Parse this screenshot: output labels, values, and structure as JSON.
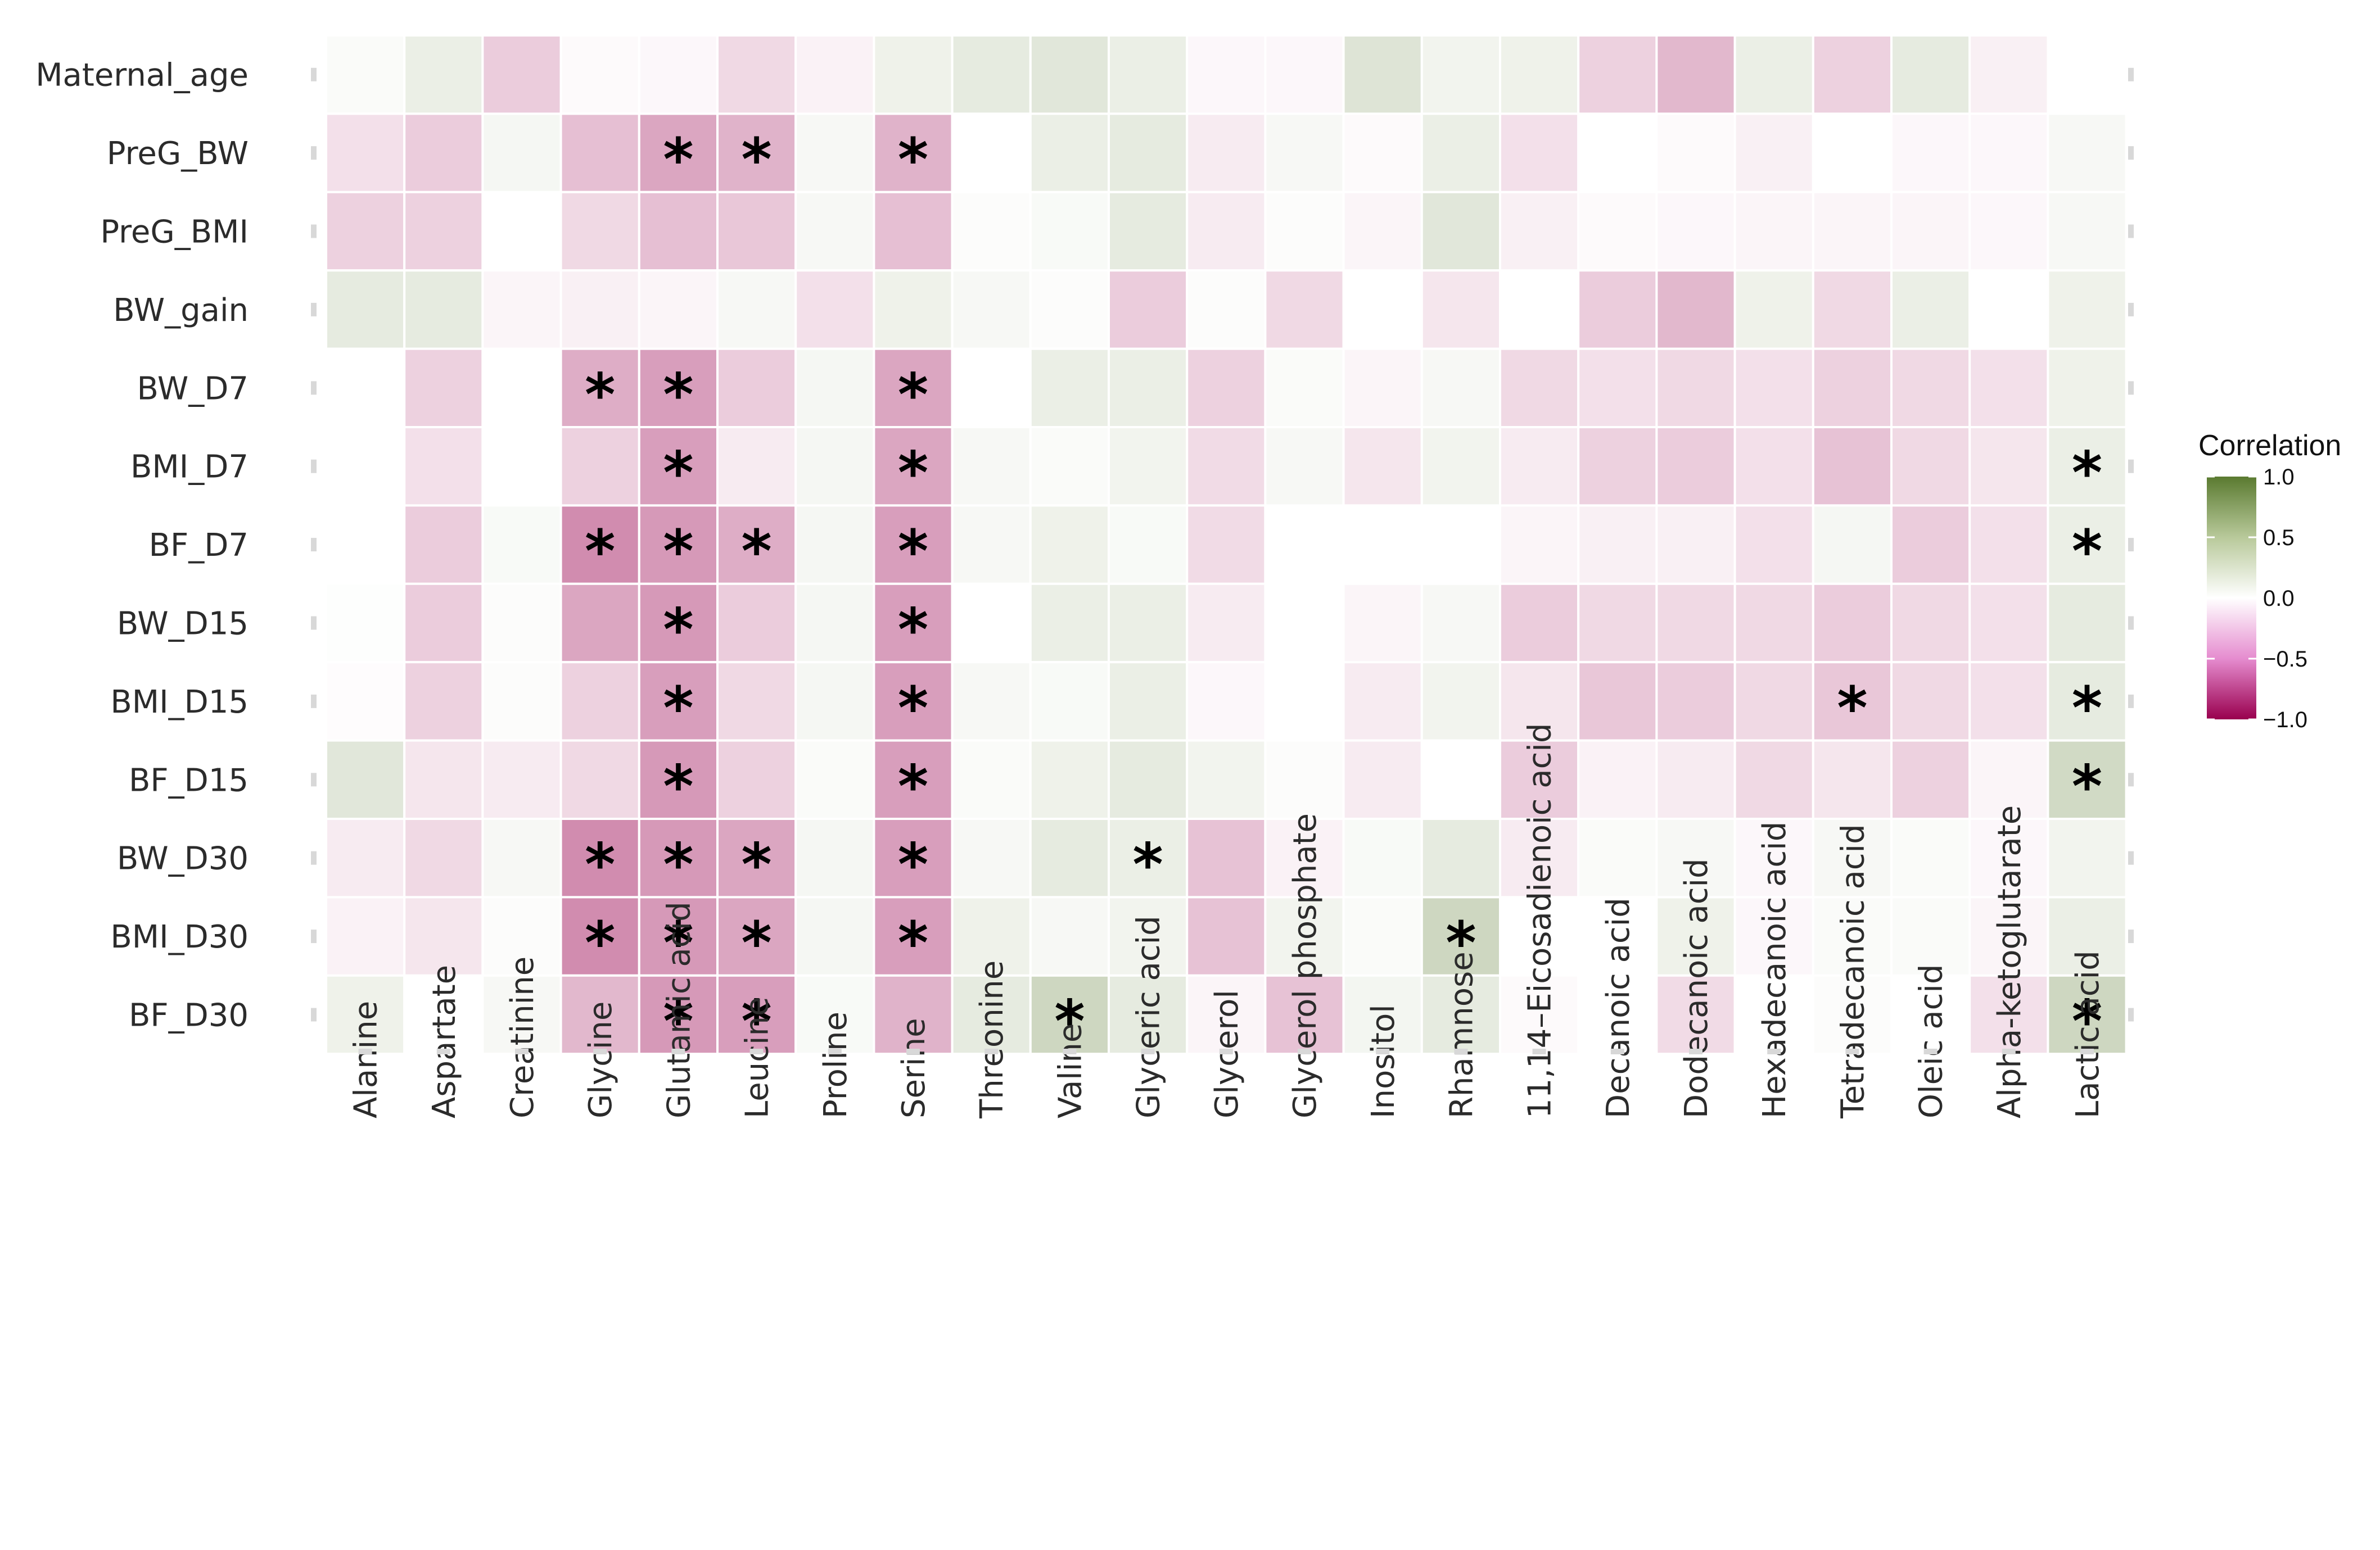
{
  "chart_data": {
    "type": "heatmap",
    "title": "",
    "xlabel": "",
    "ylabel": "",
    "rows": [
      "Maternal_age",
      "PreG_BW",
      "PreG_BMI",
      "BW_gain",
      "BW_D7",
      "BMI_D7",
      "BF_D7",
      "BW_D15",
      "BMI_D15",
      "BF_D15",
      "BW_D30",
      "BMI_D30",
      "BF_D30"
    ],
    "columns": [
      "Alanine",
      "Aspartate",
      "Creatinine",
      "Glycine",
      "Glutamic acid",
      "Leucine",
      "Proline",
      "Serine",
      "Threonine",
      "Valine",
      "Glyceric acid",
      "Glycerol",
      "Glycerol phosphate",
      "Inositol",
      "Rhamnose",
      "11,14–Eicosadienoic acid",
      "Decanoic acid",
      "Dodecanoic acid",
      "Hexadecanoic acid",
      "Tetradecanoic acid",
      "Oleic acid",
      "Alpha-ketoglutarate",
      "Lactic acid"
    ],
    "values": [
      [
        0.03,
        0.12,
        -0.2,
        -0.02,
        -0.03,
        -0.15,
        -0.05,
        0.1,
        0.15,
        0.18,
        0.12,
        -0.03,
        -0.03,
        0.2,
        0.08,
        0.1,
        -0.18,
        -0.28,
        0.12,
        -0.18,
        0.15,
        -0.06,
        null
      ],
      [
        -0.12,
        -0.2,
        0.06,
        -0.25,
        -0.35,
        -0.3,
        0.05,
        -0.3,
        0.0,
        0.12,
        0.15,
        -0.08,
        0.05,
        -0.02,
        0.12,
        -0.12,
        0.0,
        -0.02,
        -0.06,
        0.0,
        -0.03,
        -0.03,
        0.05
      ],
      [
        -0.18,
        -0.18,
        0.0,
        -0.15,
        -0.25,
        -0.22,
        0.05,
        -0.25,
        0.02,
        0.04,
        0.15,
        -0.08,
        0.02,
        -0.04,
        0.18,
        -0.06,
        -0.02,
        -0.03,
        -0.04,
        -0.04,
        -0.04,
        -0.03,
        0.05
      ],
      [
        0.15,
        0.15,
        -0.04,
        -0.06,
        -0.04,
        0.05,
        -0.12,
        0.1,
        0.05,
        0.02,
        -0.2,
        0.02,
        -0.15,
        0.0,
        -0.1,
        0.0,
        -0.2,
        -0.28,
        0.1,
        -0.15,
        0.12,
        0.0,
        0.1
      ],
      [
        0.0,
        -0.18,
        0.0,
        -0.32,
        -0.38,
        -0.2,
        0.06,
        -0.35,
        0.0,
        0.12,
        0.12,
        -0.18,
        0.03,
        -0.04,
        0.05,
        -0.15,
        -0.12,
        -0.15,
        -0.12,
        -0.18,
        -0.15,
        -0.12,
        0.1
      ],
      [
        0.0,
        -0.12,
        0.0,
        -0.18,
        -0.38,
        -0.08,
        0.06,
        -0.35,
        0.05,
        0.03,
        0.08,
        -0.14,
        0.05,
        -0.1,
        0.08,
        -0.08,
        -0.18,
        -0.2,
        -0.12,
        -0.24,
        -0.15,
        -0.1,
        0.12
      ],
      [
        0.0,
        -0.2,
        0.04,
        -0.45,
        -0.4,
        -0.32,
        0.06,
        -0.38,
        0.05,
        0.1,
        0.04,
        -0.14,
        0.0,
        0.0,
        0.0,
        -0.04,
        -0.06,
        -0.06,
        -0.12,
        0.06,
        -0.2,
        -0.12,
        0.12
      ],
      [
        0.01,
        -0.2,
        0.02,
        -0.35,
        -0.4,
        -0.2,
        0.06,
        -0.38,
        0.0,
        0.12,
        0.12,
        -0.08,
        0.0,
        -0.04,
        0.05,
        -0.2,
        -0.15,
        -0.15,
        -0.15,
        -0.2,
        -0.15,
        -0.12,
        0.15
      ],
      [
        -0.01,
        -0.18,
        0.02,
        -0.18,
        -0.38,
        -0.15,
        0.06,
        -0.38,
        0.05,
        0.04,
        0.12,
        -0.03,
        0.0,
        -0.08,
        0.08,
        -0.1,
        -0.22,
        -0.2,
        -0.15,
        -0.22,
        -0.15,
        -0.12,
        0.15
      ],
      [
        0.18,
        -0.1,
        -0.08,
        -0.15,
        -0.4,
        -0.18,
        0.03,
        -0.38,
        0.03,
        0.1,
        0.15,
        0.08,
        0.02,
        -0.08,
        0.0,
        -0.2,
        -0.05,
        -0.08,
        -0.15,
        -0.1,
        -0.18,
        -0.04,
        0.28
      ],
      [
        -0.08,
        -0.15,
        0.05,
        -0.45,
        -0.4,
        -0.35,
        0.06,
        -0.38,
        0.05,
        0.15,
        0.12,
        -0.24,
        -0.05,
        0.04,
        0.15,
        -0.08,
        0.03,
        0.05,
        -0.03,
        0.05,
        0.03,
        -0.03,
        0.08
      ],
      [
        -0.05,
        -0.1,
        0.02,
        -0.45,
        -0.4,
        -0.35,
        0.06,
        -0.38,
        0.1,
        0.05,
        0.08,
        -0.24,
        0.08,
        0.03,
        0.3,
        0.0,
        0.0,
        0.1,
        -0.03,
        0.03,
        0.03,
        -0.04,
        0.12
      ],
      [
        0.1,
        0.0,
        0.05,
        -0.28,
        -0.4,
        -0.38,
        0.04,
        -0.3,
        0.15,
        0.3,
        0.15,
        -0.04,
        -0.24,
        0.07,
        0.15,
        -0.02,
        0.0,
        -0.14,
        0.0,
        0.02,
        0.0,
        -0.12,
        0.3
      ]
    ],
    "significant": [
      [
        1,
        4
      ],
      [
        1,
        5
      ],
      [
        1,
        7
      ],
      [
        4,
        3
      ],
      [
        4,
        4
      ],
      [
        4,
        7
      ],
      [
        5,
        4
      ],
      [
        5,
        7
      ],
      [
        5,
        22
      ],
      [
        6,
        3
      ],
      [
        6,
        4
      ],
      [
        6,
        5
      ],
      [
        6,
        7
      ],
      [
        6,
        22
      ],
      [
        7,
        4
      ],
      [
        7,
        7
      ],
      [
        8,
        4
      ],
      [
        8,
        7
      ],
      [
        8,
        19
      ],
      [
        8,
        22
      ],
      [
        9,
        4
      ],
      [
        9,
        7
      ],
      [
        9,
        22
      ],
      [
        10,
        3
      ],
      [
        10,
        4
      ],
      [
        10,
        5
      ],
      [
        10,
        7
      ],
      [
        10,
        10
      ],
      [
        11,
        3
      ],
      [
        11,
        4
      ],
      [
        11,
        5
      ],
      [
        11,
        7
      ],
      [
        11,
        14
      ],
      [
        12,
        4
      ],
      [
        12,
        5
      ],
      [
        12,
        9
      ],
      [
        12,
        22
      ]
    ],
    "significance_marker": "*",
    "legend": {
      "title": "Correlation",
      "ticks": [
        "1.0",
        "0.5",
        "0.0",
        "−0.5",
        "−1.0"
      ],
      "range": [
        -1.0,
        1.0
      ],
      "position": "right",
      "colors": {
        "low": "#99004e",
        "mid": "#ffffff",
        "high": "#5a7a30"
      }
    }
  }
}
